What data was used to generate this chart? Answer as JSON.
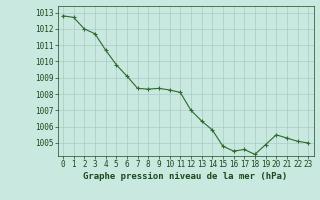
{
  "x": [
    0,
    1,
    2,
    3,
    4,
    5,
    6,
    7,
    8,
    9,
    10,
    11,
    12,
    13,
    14,
    15,
    16,
    17,
    18,
    19,
    20,
    21,
    22,
    23
  ],
  "y": [
    1012.8,
    1012.7,
    1012.0,
    1011.7,
    1010.7,
    1009.8,
    1009.1,
    1008.35,
    1008.3,
    1008.35,
    1008.25,
    1008.1,
    1007.0,
    1006.35,
    1005.8,
    1004.8,
    1004.5,
    1004.6,
    1004.3,
    1004.9,
    1005.5,
    1005.3,
    1005.1,
    1005.0
  ],
  "line_color": "#2d6a2d",
  "marker_color": "#2d6a2d",
  "bg_color": "#c8e8e0",
  "grid_color": "#a8ccc4",
  "text_color": "#1a4a1a",
  "xlabel": "Graphe pression niveau de la mer (hPa)",
  "ylim_min": 1004.2,
  "ylim_max": 1013.4,
  "yticks": [
    1005,
    1006,
    1007,
    1008,
    1009,
    1010,
    1011,
    1012,
    1013
  ],
  "xticks": [
    0,
    1,
    2,
    3,
    4,
    5,
    6,
    7,
    8,
    9,
    10,
    11,
    12,
    13,
    14,
    15,
    16,
    17,
    18,
    19,
    20,
    21,
    22,
    23
  ],
  "font_size_label": 6.5,
  "font_size_tick": 5.5
}
